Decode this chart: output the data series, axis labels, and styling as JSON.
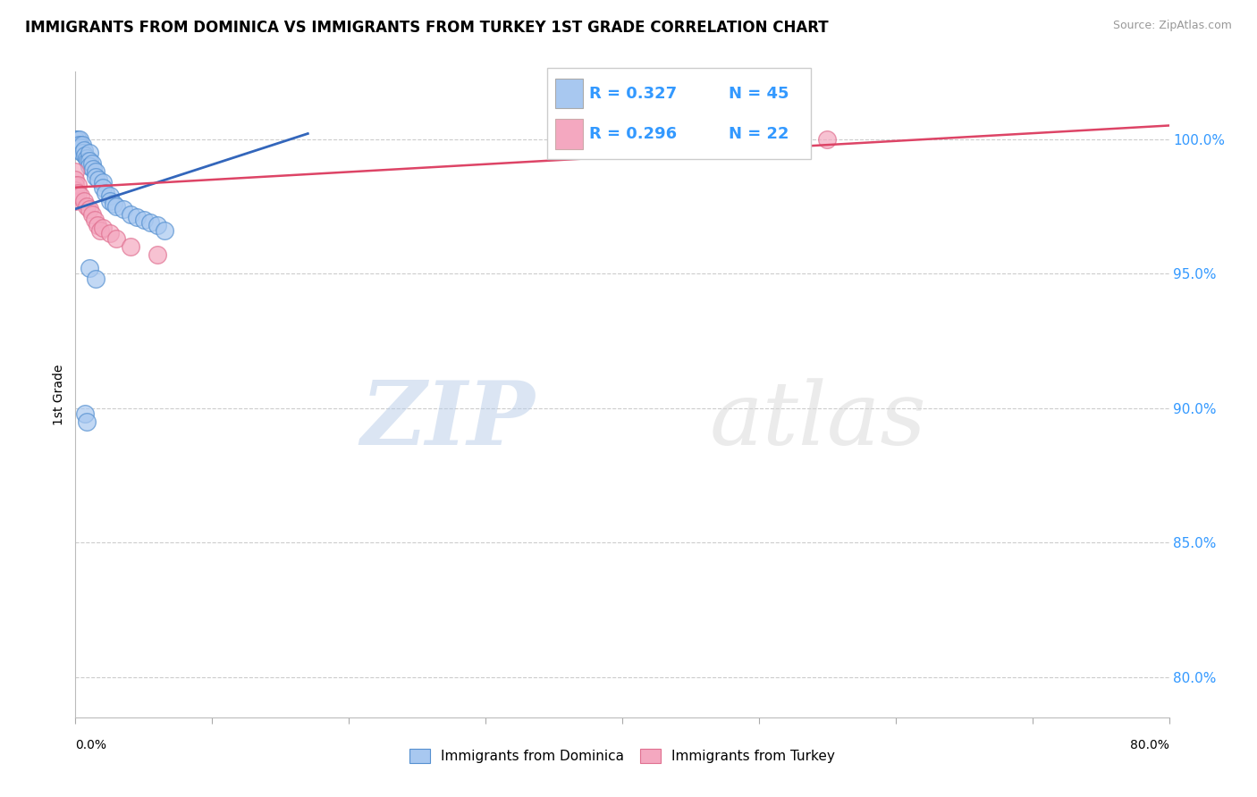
{
  "title": "IMMIGRANTS FROM DOMINICA VS IMMIGRANTS FROM TURKEY 1ST GRADE CORRELATION CHART",
  "source": "Source: ZipAtlas.com",
  "ylabel": "1st Grade",
  "y_ticks": [
    "100.0%",
    "95.0%",
    "90.0%",
    "85.0%",
    "80.0%"
  ],
  "y_tick_values": [
    1.0,
    0.95,
    0.9,
    0.85,
    0.8
  ],
  "x_lim": [
    0.0,
    0.8
  ],
  "y_lim": [
    0.785,
    1.025
  ],
  "watermark_zip": "ZIP",
  "watermark_atlas": "atlas",
  "legend_r1": "R = 0.327",
  "legend_n1": "N = 45",
  "legend_r2": "R = 0.296",
  "legend_n2": "N = 22",
  "dominica_color": "#a8c8f0",
  "turkey_color": "#f4a8c0",
  "dominica_edge_color": "#5590d0",
  "turkey_edge_color": "#e07090",
  "dominica_line_color": "#3366bb",
  "turkey_line_color": "#dd4466",
  "dominica_points": [
    [
      0.0,
      1.0
    ],
    [
      0.0,
      1.0
    ],
    [
      0.0,
      1.0
    ],
    [
      0.0,
      1.0
    ],
    [
      0.0,
      1.0
    ],
    [
      0.0,
      0.998
    ],
    [
      0.0,
      0.997
    ],
    [
      0.002,
      1.0
    ],
    [
      0.002,
      0.998
    ],
    [
      0.002,
      0.996
    ],
    [
      0.003,
      1.0
    ],
    [
      0.003,
      0.998
    ],
    [
      0.004,
      0.997
    ],
    [
      0.005,
      0.998
    ],
    [
      0.005,
      0.995
    ],
    [
      0.006,
      0.996
    ],
    [
      0.007,
      0.994
    ],
    [
      0.008,
      0.993
    ],
    [
      0.009,
      0.992
    ],
    [
      0.01,
      0.995
    ],
    [
      0.01,
      0.992
    ],
    [
      0.01,
      0.99
    ],
    [
      0.012,
      0.991
    ],
    [
      0.013,
      0.989
    ],
    [
      0.015,
      0.988
    ],
    [
      0.015,
      0.986
    ],
    [
      0.017,
      0.985
    ],
    [
      0.02,
      0.984
    ],
    [
      0.02,
      0.982
    ],
    [
      0.022,
      0.98
    ],
    [
      0.025,
      0.979
    ],
    [
      0.025,
      0.977
    ],
    [
      0.028,
      0.976
    ],
    [
      0.03,
      0.975
    ],
    [
      0.035,
      0.974
    ],
    [
      0.04,
      0.972
    ],
    [
      0.045,
      0.971
    ],
    [
      0.05,
      0.97
    ],
    [
      0.055,
      0.969
    ],
    [
      0.06,
      0.968
    ],
    [
      0.065,
      0.966
    ],
    [
      0.007,
      0.898
    ],
    [
      0.008,
      0.895
    ],
    [
      0.01,
      0.952
    ],
    [
      0.015,
      0.948
    ]
  ],
  "turkey_points": [
    [
      0.0,
      0.988
    ],
    [
      0.0,
      0.985
    ],
    [
      0.0,
      0.983
    ],
    [
      0.0,
      0.981
    ],
    [
      0.0,
      0.979
    ],
    [
      0.0,
      0.977
    ],
    [
      0.002,
      0.983
    ],
    [
      0.002,
      0.98
    ],
    [
      0.004,
      0.979
    ],
    [
      0.006,
      0.977
    ],
    [
      0.008,
      0.975
    ],
    [
      0.01,
      0.974
    ],
    [
      0.012,
      0.972
    ],
    [
      0.014,
      0.97
    ],
    [
      0.016,
      0.968
    ],
    [
      0.018,
      0.966
    ],
    [
      0.02,
      0.967
    ],
    [
      0.025,
      0.965
    ],
    [
      0.03,
      0.963
    ],
    [
      0.04,
      0.96
    ],
    [
      0.06,
      0.957
    ],
    [
      0.55,
      1.0
    ]
  ]
}
